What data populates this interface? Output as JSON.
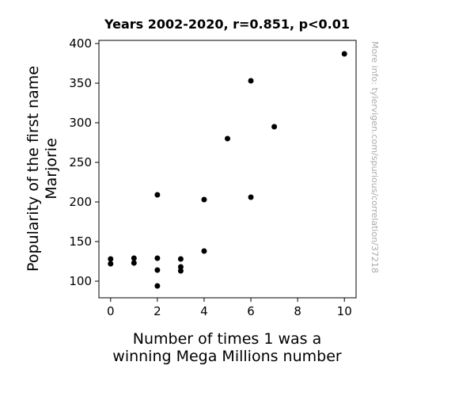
{
  "chart_data": {
    "type": "scatter",
    "title": "Years 2002-2020, r=0.851, p<0.01",
    "xlabel_lines": [
      "Number of times 1 was a",
      "winning Mega Millions number"
    ],
    "ylabel_lines": [
      "Popularity of the first name",
      "Marjorie"
    ],
    "xlim": [
      -0.5,
      10.5
    ],
    "ylim": [
      79,
      404
    ],
    "xticks": [
      0,
      2,
      4,
      6,
      8,
      10
    ],
    "yticks": [
      100,
      150,
      200,
      250,
      300,
      350,
      400
    ],
    "grid": false,
    "marker_color": "#000000",
    "points": [
      {
        "x": 0,
        "y": 128
      },
      {
        "x": 0,
        "y": 122
      },
      {
        "x": 1,
        "y": 129
      },
      {
        "x": 1,
        "y": 123
      },
      {
        "x": 2,
        "y": 209
      },
      {
        "x": 2,
        "y": 129
      },
      {
        "x": 2,
        "y": 114
      },
      {
        "x": 2,
        "y": 94
      },
      {
        "x": 3,
        "y": 128
      },
      {
        "x": 3,
        "y": 118
      },
      {
        "x": 3,
        "y": 113
      },
      {
        "x": 4,
        "y": 203
      },
      {
        "x": 4,
        "y": 138
      },
      {
        "x": 5,
        "y": 280
      },
      {
        "x": 6,
        "y": 353
      },
      {
        "x": 6,
        "y": 206
      },
      {
        "x": 7,
        "y": 295
      },
      {
        "x": 10,
        "y": 387
      }
    ]
  },
  "watermark": "More info: tylervigen.com/spurious/correlation/37218"
}
